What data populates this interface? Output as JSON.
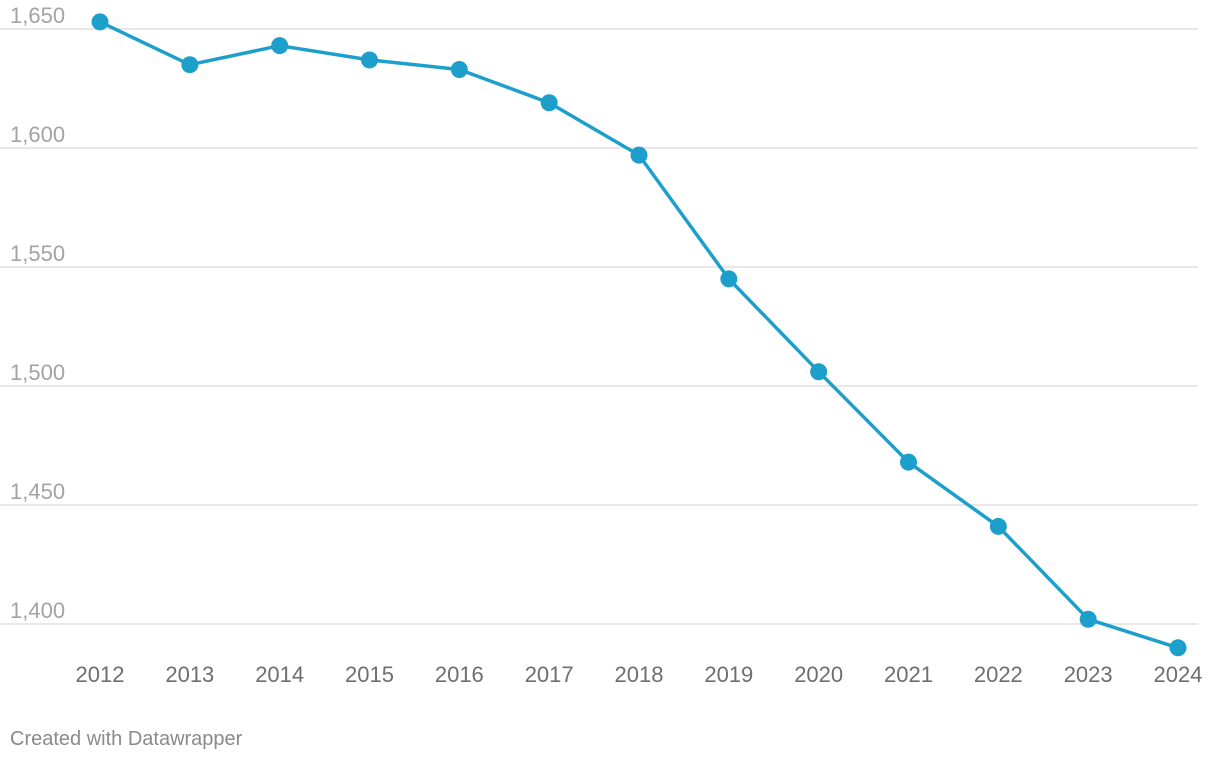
{
  "chart_data": {
    "type": "line",
    "title": "",
    "xlabel": "",
    "ylabel": "",
    "x": [
      "2012",
      "2013",
      "2014",
      "2015",
      "2016",
      "2017",
      "2018",
      "2019",
      "2020",
      "2021",
      "2022",
      "2023",
      "2024"
    ],
    "series": [
      {
        "values": [
          1653,
          1635,
          1643,
          1637,
          1633,
          1619,
          1597,
          1545,
          1506,
          1468,
          1441,
          1402,
          1390
        ],
        "color": "#1d9fcc"
      }
    ],
    "yticks": [
      1400,
      1450,
      1500,
      1550,
      1600,
      1650
    ],
    "ytick_labels": [
      "1,400",
      "1,450",
      "1,500",
      "1,550",
      "1,600",
      "1,650"
    ],
    "ylim": [
      1400,
      1650
    ],
    "grid": true,
    "markers": true
  },
  "footer": {
    "credit": "Created with Datawrapper"
  }
}
